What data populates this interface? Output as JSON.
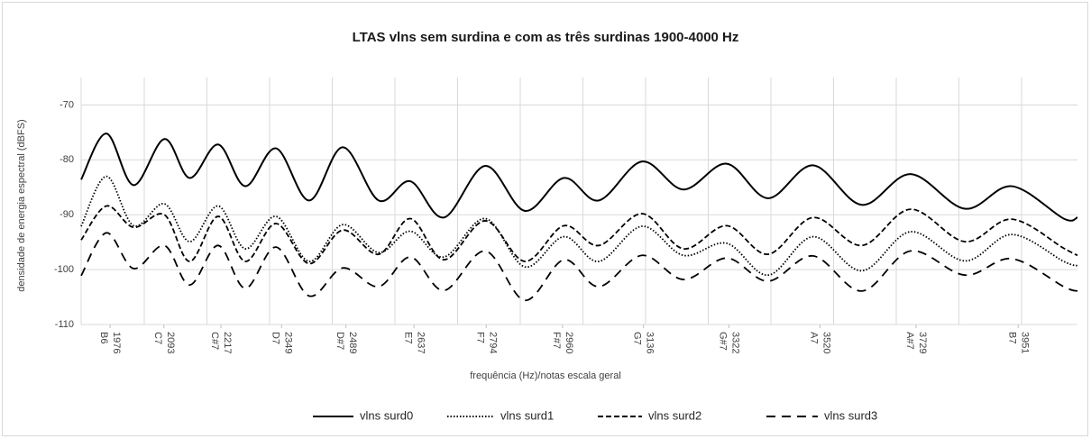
{
  "chart_data": {
    "type": "line",
    "title": "LTAS vlns sem surdina e com as três surdinas 1900-4000 Hz",
    "xlabel": "frequência (Hz)/notas escala geral",
    "ylabel": "densidade de energia espectral (dBFS)",
    "x": [
      1913,
      1968,
      2027,
      2094,
      2149,
      2211,
      2270,
      2337,
      2409,
      2482,
      2560,
      2629,
      2702,
      2792,
      2878,
      2963,
      3039,
      3133,
      3223,
      3317,
      3407,
      3505,
      3611,
      3717,
      3835,
      3937,
      4050,
      4080
    ],
    "xlim": [
      1913,
      4080
    ],
    "xticks": [
      1976,
      2093,
      2217,
      2349,
      2489,
      2637,
      2794,
      2960,
      3136,
      3322,
      3520,
      3729,
      3951
    ],
    "xtick_notes": [
      "B6",
      "C7",
      "C#7",
      "D7",
      "D#7",
      "E7",
      "F7",
      "F#7",
      "G7",
      "G#7",
      "A7",
      "A#7",
      "B7"
    ],
    "ylim": [
      -110,
      -65
    ],
    "yticks": [
      -110,
      -100,
      -90,
      -80,
      -70
    ],
    "grid": true,
    "legend": "bottom",
    "series": [
      {
        "name": "vlns surd0",
        "color": "#000000",
        "style": "solid",
        "values": [
          -83.6,
          -75.2,
          -84.6,
          -76.2,
          -83.3,
          -77.2,
          -84.8,
          -77.9,
          -87.4,
          -77.7,
          -87.4,
          -83.9,
          -90.5,
          -81.1,
          -89.3,
          -83.3,
          -87.4,
          -80.3,
          -85.4,
          -80.7,
          -87,
          -81,
          -88.2,
          -82.6,
          -88.9,
          -84.8,
          -90.7,
          -90.5
        ]
      },
      {
        "name": "vlns surd1",
        "color": "#000000",
        "style": "dotted",
        "values": [
          -92.1,
          -83,
          -92,
          -88,
          -94.9,
          -88.4,
          -96.2,
          -90.3,
          -98.5,
          -91.8,
          -96.9,
          -93,
          -97.7,
          -90.7,
          -99.5,
          -94,
          -98.5,
          -92.1,
          -97.4,
          -95.2,
          -101,
          -94,
          -100.2,
          -93.1,
          -98.4,
          -93.6,
          -98.5,
          -99.3
        ]
      },
      {
        "name": "vlns surd2",
        "color": "#000000",
        "style": "dashed",
        "values": [
          -94.6,
          -88.4,
          -92.3,
          -90,
          -98.5,
          -90.3,
          -98.5,
          -91.6,
          -98.9,
          -92.8,
          -97.2,
          -90.7,
          -98.2,
          -91.1,
          -98.5,
          -92,
          -95.6,
          -89.8,
          -96.2,
          -92,
          -97.2,
          -90.5,
          -95.6,
          -89,
          -94.9,
          -90.8,
          -96.1,
          -97.4
        ]
      },
      {
        "name": "vlns surd3",
        "color": "#000000",
        "style": "longdash",
        "values": [
          -101.1,
          -93.3,
          -99.8,
          -95.6,
          -102.8,
          -95.6,
          -103.4,
          -95.9,
          -104.8,
          -99.7,
          -103.1,
          -97.7,
          -103.8,
          -96.6,
          -105.6,
          -98.2,
          -103.1,
          -97.4,
          -101.8,
          -97.9,
          -102.1,
          -97.5,
          -103.9,
          -96.6,
          -101,
          -98,
          -103.1,
          -103.9
        ]
      }
    ]
  }
}
